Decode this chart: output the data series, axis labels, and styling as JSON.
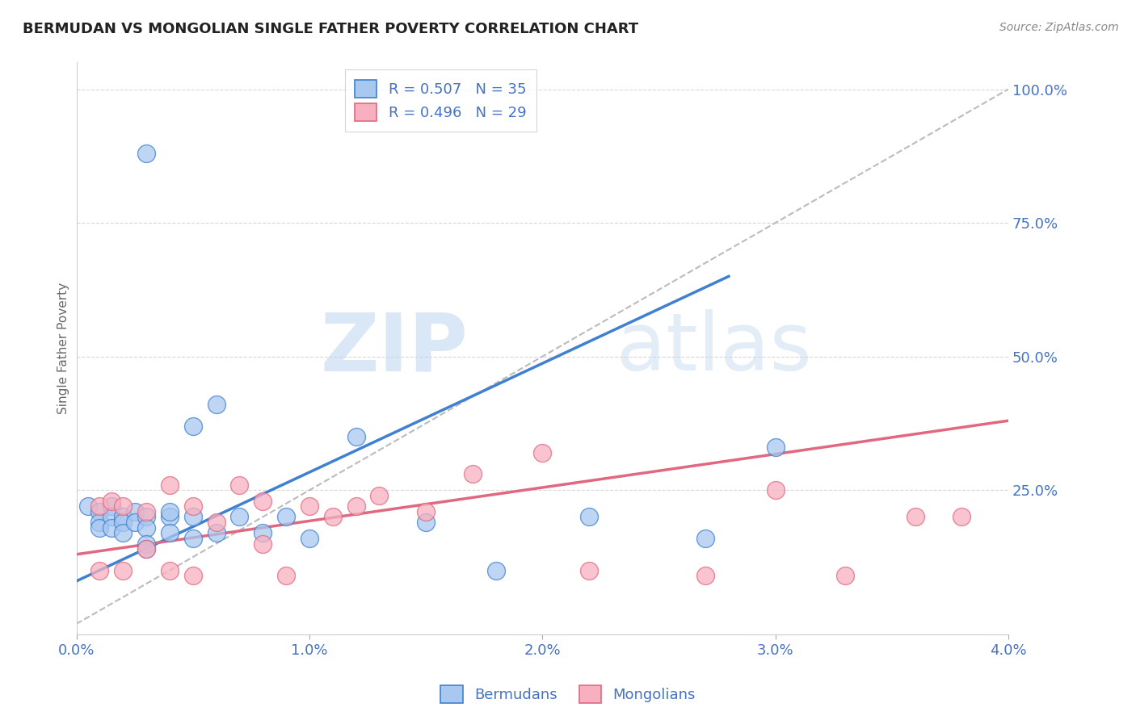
{
  "title": "BERMUDAN VS MONGOLIAN SINGLE FATHER POVERTY CORRELATION CHART",
  "source": "Source: ZipAtlas.com",
  "ylabel": "Single Father Poverty",
  "xlim": [
    0.0,
    0.04
  ],
  "ylim": [
    -0.02,
    1.05
  ],
  "xticks": [
    0.0,
    0.01,
    0.02,
    0.03,
    0.04
  ],
  "xticklabels": [
    "0.0%",
    "1.0%",
    "2.0%",
    "3.0%",
    "4.0%"
  ],
  "yticks_right": [
    0.25,
    0.5,
    0.75,
    1.0
  ],
  "yticklabels_right": [
    "25.0%",
    "50.0%",
    "75.0%",
    "100.0%"
  ],
  "blue_R": 0.507,
  "blue_N": 35,
  "pink_R": 0.496,
  "pink_N": 29,
  "blue_color": "#a8c8f0",
  "pink_color": "#f8b0c0",
  "blue_line_color": "#4080d0",
  "pink_line_color": "#e06880",
  "watermark_zip": "ZIP",
  "watermark_atlas": "atlas",
  "blue_scatter_x": [
    0.0005,
    0.001,
    0.001,
    0.001,
    0.0015,
    0.0015,
    0.0015,
    0.002,
    0.002,
    0.002,
    0.0025,
    0.0025,
    0.003,
    0.003,
    0.003,
    0.003,
    0.004,
    0.004,
    0.004,
    0.005,
    0.005,
    0.005,
    0.006,
    0.006,
    0.007,
    0.008,
    0.009,
    0.01,
    0.012,
    0.015,
    0.018,
    0.022,
    0.027,
    0.03,
    0.003
  ],
  "blue_scatter_y": [
    0.22,
    0.21,
    0.19,
    0.18,
    0.22,
    0.2,
    0.18,
    0.2,
    0.19,
    0.17,
    0.21,
    0.19,
    0.2,
    0.18,
    0.15,
    0.14,
    0.2,
    0.21,
    0.17,
    0.37,
    0.2,
    0.16,
    0.41,
    0.17,
    0.2,
    0.17,
    0.2,
    0.16,
    0.35,
    0.19,
    0.1,
    0.2,
    0.16,
    0.33,
    0.88
  ],
  "pink_scatter_x": [
    0.001,
    0.0015,
    0.002,
    0.002,
    0.003,
    0.003,
    0.004,
    0.004,
    0.005,
    0.005,
    0.006,
    0.007,
    0.008,
    0.008,
    0.009,
    0.01,
    0.011,
    0.012,
    0.013,
    0.015,
    0.017,
    0.02,
    0.022,
    0.027,
    0.03,
    0.033,
    0.036,
    0.038,
    0.001
  ],
  "pink_scatter_y": [
    0.22,
    0.23,
    0.22,
    0.1,
    0.21,
    0.14,
    0.26,
    0.1,
    0.22,
    0.09,
    0.19,
    0.26,
    0.23,
    0.15,
    0.09,
    0.22,
    0.2,
    0.22,
    0.24,
    0.21,
    0.28,
    0.32,
    0.1,
    0.09,
    0.25,
    0.09,
    0.2,
    0.2,
    0.1
  ],
  "blue_line_x": [
    0.0,
    0.028
  ],
  "blue_line_y": [
    0.08,
    0.65
  ],
  "pink_line_x": [
    0.0,
    0.04
  ],
  "pink_line_y": [
    0.13,
    0.38
  ],
  "diag_line_x": [
    0.0,
    0.04
  ],
  "diag_line_y": [
    0.0,
    1.0
  ],
  "background_color": "#ffffff",
  "grid_color": "#d8d8d8",
  "title_fontsize": 13,
  "tick_label_color": "#4472c4",
  "source_color": "#888888"
}
